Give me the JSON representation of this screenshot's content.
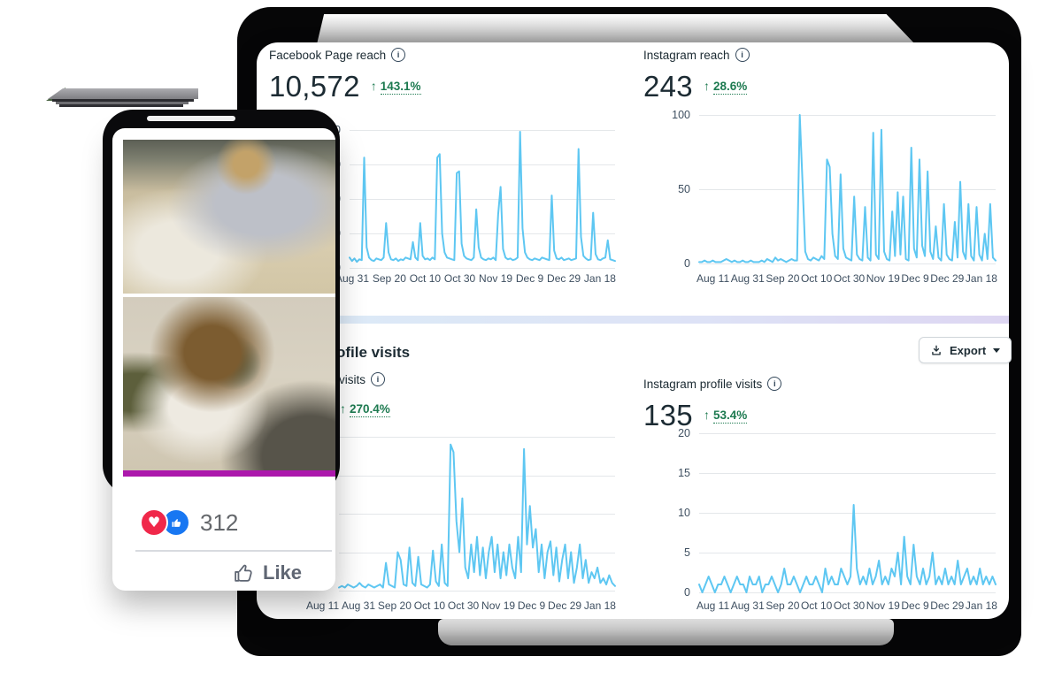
{
  "dashboard": {
    "cards": {
      "facebook_reach": {
        "title": "Facebook Page reach",
        "value": "10,572",
        "delta_arrow": "↑",
        "delta_pct": "143.1%"
      },
      "instagram_reach": {
        "title": "Instagram reach",
        "value": "243",
        "delta_arrow": "↑",
        "delta_pct": "28.6%"
      },
      "facebook_profile_visits": {
        "title_visible": "visits",
        "delta_arrow": "↑",
        "delta_pct": "270.4%"
      },
      "instagram_profile_visits": {
        "title": "Instagram profile visits",
        "value": "135",
        "delta_arrow": "↑",
        "delta_pct": "53.4%"
      }
    },
    "section_heading_visible": "profile visits",
    "export_label": "Export",
    "info_glyph": "i"
  },
  "chart_data": [
    {
      "id": "facebook-page-reach",
      "type": "line",
      "title": "Facebook Page reach",
      "color": "#5ec7f2",
      "ylim": [
        0,
        800
      ],
      "gridlines": 5,
      "ylabels": [
        "800",
        "600",
        "400",
        "200",
        "0"
      ],
      "x_ticks": [
        "Aug 11",
        "Aug 31",
        "Sep 20",
        "Oct 10",
        "Oct 30",
        "Nov 19",
        "Dec 9",
        "Dec 29",
        "Jan 18"
      ],
      "series": [
        {
          "name": "Facebook Page reach",
          "values": [
            60,
            40,
            55,
            35,
            50,
            45,
            640,
            120,
            60,
            45,
            40,
            55,
            50,
            45,
            60,
            260,
            90,
            50,
            45,
            55,
            40,
            50,
            45,
            60,
            55,
            50,
            150,
            60,
            45,
            260,
            70,
            50,
            55,
            45,
            60,
            50,
            640,
            660,
            200,
            90,
            60,
            55,
            50,
            45,
            550,
            560,
            140,
            70,
            55,
            50,
            45,
            60,
            340,
            120,
            60,
            50,
            45,
            55,
            50,
            60,
            45,
            310,
            470,
            110,
            60,
            50,
            55,
            45,
            50,
            60,
            790,
            230,
            90,
            60,
            50,
            45,
            55,
            50,
            45,
            60,
            55,
            50,
            45,
            420,
            100,
            55,
            50,
            60,
            45,
            50,
            55,
            45,
            50,
            55,
            690,
            180,
            70,
            55,
            45,
            50,
            320,
            80,
            50,
            45,
            55,
            60,
            160,
            50,
            45,
            40
          ]
        }
      ]
    },
    {
      "id": "instagram-reach",
      "type": "line",
      "title": "Instagram reach",
      "color": "#5ec7f2",
      "ylim": [
        0,
        100
      ],
      "gridlines": 3,
      "ylabels": [
        "100",
        "50",
        "0"
      ],
      "x_ticks": [
        "Aug 11",
        "Aug 31",
        "Sep 20",
        "Oct 10",
        "Oct 30",
        "Nov 19",
        "Dec 9",
        "Dec 29",
        "Jan 18"
      ],
      "series": [
        {
          "name": "Instagram reach",
          "values": [
            1,
            1,
            2,
            1,
            1,
            2,
            1,
            1,
            1,
            2,
            3,
            2,
            1,
            2,
            1,
            1,
            2,
            1,
            1,
            2,
            1,
            1,
            1,
            2,
            1,
            3,
            2,
            1,
            4,
            2,
            3,
            2,
            1,
            2,
            3,
            2,
            2,
            100,
            55,
            8,
            3,
            2,
            4,
            3,
            2,
            5,
            3,
            70,
            65,
            20,
            5,
            3,
            60,
            10,
            4,
            3,
            2,
            45,
            6,
            3,
            2,
            38,
            4,
            2,
            88,
            6,
            3,
            90,
            8,
            3,
            2,
            35,
            5,
            48,
            6,
            45,
            3,
            2,
            78,
            10,
            4,
            70,
            12,
            5,
            62,
            8,
            3,
            25,
            4,
            2,
            40,
            6,
            3,
            2,
            28,
            4,
            55,
            8,
            3,
            40,
            5,
            2,
            38,
            6,
            2,
            20,
            3,
            40,
            4,
            2
          ]
        }
      ]
    },
    {
      "id": "facebook-profile-visits",
      "type": "line",
      "title": "visits",
      "color": "#5ec7f2",
      "ylim": [
        0,
        100
      ],
      "gridlines": 5,
      "ylabels": [],
      "x_ticks": [
        "Aug 11",
        "Aug 31",
        "Sep 20",
        "Oct 10",
        "Oct 30",
        "Nov 19",
        "Dec 9",
        "Dec 29",
        "Jan 18"
      ],
      "series": [
        {
          "name": "visits",
          "values": [
            2,
            3,
            2,
            4,
            3,
            2,
            3,
            5,
            3,
            2,
            4,
            3,
            2,
            3,
            4,
            2,
            18,
            4,
            3,
            2,
            25,
            20,
            4,
            3,
            28,
            5,
            3,
            22,
            4,
            3,
            2,
            4,
            26,
            6,
            3,
            30,
            5,
            3,
            95,
            90,
            45,
            25,
            60,
            15,
            8,
            30,
            12,
            35,
            10,
            28,
            8,
            25,
            35,
            12,
            30,
            8,
            25,
            10,
            30,
            15,
            8,
            35,
            12,
            92,
            30,
            55,
            28,
            40,
            12,
            30,
            8,
            25,
            32,
            10,
            28,
            6,
            20,
            30,
            8,
            25,
            5,
            15,
            30,
            8,
            20,
            5,
            12,
            8,
            15,
            5,
            8,
            4,
            10,
            5,
            3
          ]
        }
      ]
    },
    {
      "id": "instagram-profile-visits",
      "type": "line",
      "title": "Instagram profile visits",
      "color": "#5ec7f2",
      "ylim": [
        0,
        20
      ],
      "gridlines": 5,
      "ylabels": [
        "20",
        "15",
        "10",
        "5",
        "0"
      ],
      "x_ticks": [
        "Aug 11",
        "Aug 31",
        "Sep 20",
        "Oct 10",
        "Oct 30",
        "Nov 19",
        "Dec 9",
        "Dec 29",
        "Jan 18"
      ],
      "series": [
        {
          "name": "Instagram profile visits",
          "values": [
            1,
            0,
            1,
            2,
            1,
            0,
            1,
            1,
            2,
            1,
            0,
            1,
            2,
            1,
            1,
            0,
            2,
            1,
            1,
            2,
            0,
            1,
            1,
            2,
            1,
            0,
            1,
            3,
            1,
            1,
            2,
            1,
            0,
            1,
            2,
            1,
            1,
            2,
            1,
            0,
            3,
            1,
            2,
            1,
            1,
            3,
            2,
            1,
            2,
            11,
            3,
            1,
            2,
            1,
            3,
            1,
            2,
            4,
            1,
            2,
            1,
            3,
            2,
            5,
            1,
            7,
            2,
            1,
            6,
            2,
            1,
            3,
            1,
            2,
            5,
            1,
            2,
            1,
            3,
            1,
            2,
            1,
            4,
            1,
            2,
            3,
            1,
            2,
            1,
            3,
            1,
            2,
            1,
            2,
            1
          ]
        }
      ]
    }
  ],
  "facebook_post": {
    "reaction_count": "312",
    "like_button_label": "Like",
    "heart_glyph": "♥",
    "photos": [
      {
        "alt": "Smiling woman lying on a clinic floor hugging a yellow labrador"
      },
      {
        "alt": "Man in plaid shirt lying on a clinic floor cuddling a white dog"
      }
    ]
  },
  "colors": {
    "chart_line": "#5ec7f2",
    "positive_green": "#1d7a50",
    "accent_magenta": "#ac18ac",
    "love_red": "#f0284a",
    "like_blue": "#1877f2",
    "text_dark": "#1c2b33"
  }
}
